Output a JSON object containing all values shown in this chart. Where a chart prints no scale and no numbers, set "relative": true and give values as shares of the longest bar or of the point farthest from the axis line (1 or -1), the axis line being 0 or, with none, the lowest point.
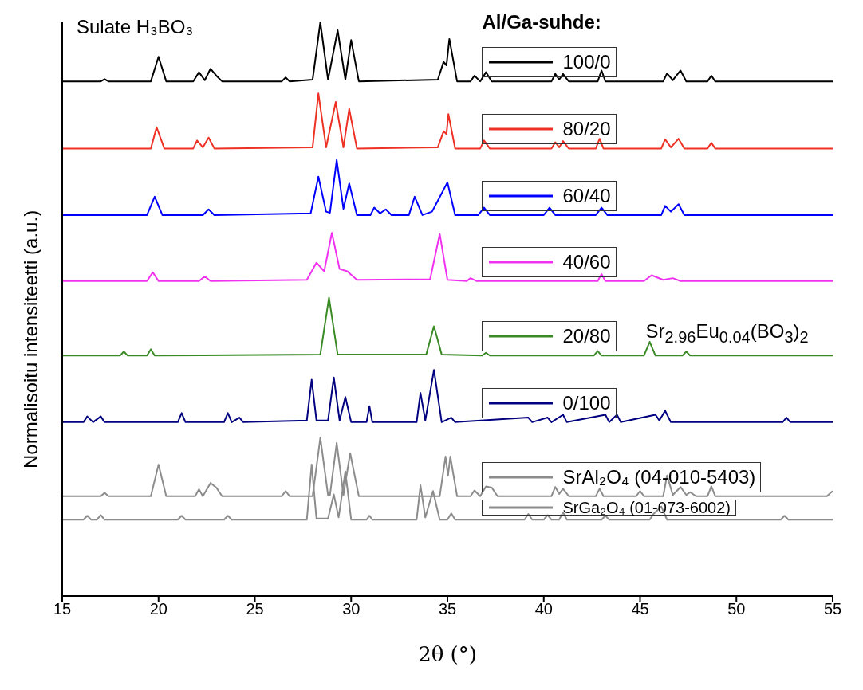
{
  "chart_data": {
    "type": "line",
    "relative": true,
    "xlabel": "2θ (°)",
    "ylabel": "Normalisoitu intensiteetti (a.u.)",
    "legend_title": "Al/Ga-suhde:",
    "legend": "top right",
    "tick_labels": "x",
    "xlim": [
      15,
      55
    ],
    "xticks": [
      15,
      20,
      25,
      30,
      35,
      40,
      45,
      50,
      55
    ],
    "annotations": [
      "Sulate H₃BO₃",
      "Sr$_{2.96}$Eu$_{0.04}$(BO$_{3}$)$_{2}$"
    ],
    "series": [
      {
        "name": "100/0",
        "color": "#000000",
        "x": [
          15,
          17.0,
          17.2,
          17.4,
          19.6,
          20.0,
          20.4,
          21.8,
          22.1,
          22.4,
          22.7,
          23.0,
          23.3,
          26.4,
          26.6,
          26.8,
          28.0,
          28.4,
          28.8,
          29.3,
          29.7,
          30.0,
          30.4,
          34.5,
          34.8,
          34.95,
          35.1,
          35.5,
          36.2,
          36.4,
          36.7,
          37.0,
          37.3,
          40.4,
          40.6,
          40.8,
          41.0,
          41.3,
          42.8,
          43.0,
          43.2,
          46.2,
          46.4,
          46.7,
          47.1,
          47.4,
          48.5,
          48.7,
          48.9,
          55
        ],
        "values": [
          0.897,
          0.897,
          0.901,
          0.897,
          0.897,
          0.94,
          0.897,
          0.897,
          0.913,
          0.899,
          0.919,
          0.907,
          0.897,
          0.897,
          0.904,
          0.897,
          0.9,
          1.0,
          0.9,
          0.986,
          0.9,
          0.969,
          0.897,
          0.9,
          0.931,
          0.925,
          0.971,
          0.897,
          0.897,
          0.907,
          0.897,
          0.913,
          0.897,
          0.897,
          0.91,
          0.9,
          0.91,
          0.897,
          0.897,
          0.916,
          0.897,
          0.897,
          0.911,
          0.899,
          0.916,
          0.897,
          0.897,
          0.907,
          0.897,
          0.897
        ]
      },
      {
        "name": "80/20",
        "color": "#ee3124",
        "x": [
          15,
          19.6,
          19.9,
          20.3,
          21.8,
          22.0,
          22.3,
          22.6,
          22.9,
          28.0,
          28.3,
          28.7,
          29.2,
          29.6,
          29.9,
          30.3,
          34.5,
          34.8,
          34.95,
          35.05,
          35.4,
          36.7,
          36.9,
          37.2,
          40.4,
          40.6,
          40.8,
          41.0,
          41.3,
          42.7,
          42.9,
          43.1,
          46.1,
          46.3,
          46.6,
          47.0,
          47.3,
          48.5,
          48.7,
          48.9,
          55
        ],
        "values": [
          0.78,
          0.78,
          0.817,
          0.78,
          0.78,
          0.794,
          0.782,
          0.799,
          0.78,
          0.782,
          0.876,
          0.782,
          0.861,
          0.782,
          0.849,
          0.78,
          0.782,
          0.81,
          0.805,
          0.84,
          0.78,
          0.78,
          0.794,
          0.78,
          0.78,
          0.791,
          0.782,
          0.793,
          0.78,
          0.78,
          0.797,
          0.78,
          0.78,
          0.796,
          0.782,
          0.797,
          0.78,
          0.78,
          0.79,
          0.78,
          0.78
        ]
      },
      {
        "name": "60/40",
        "color": "#0000ff",
        "x": [
          15,
          19.4,
          19.8,
          20.2,
          22.3,
          22.6,
          22.9,
          27.9,
          28.3,
          28.7,
          28.9,
          29.25,
          29.6,
          29.9,
          30.3,
          31.0,
          31.2,
          31.5,
          31.8,
          32.1,
          33.0,
          33.3,
          33.7,
          34.2,
          34.5,
          35.0,
          35.4,
          36.6,
          36.9,
          37.2,
          40.0,
          40.3,
          40.6,
          42.7,
          43.0,
          43.3,
          46.1,
          46.3,
          46.6,
          47.0,
          47.3,
          55
        ],
        "values": [
          0.664,
          0.664,
          0.696,
          0.664,
          0.664,
          0.674,
          0.664,
          0.667,
          0.731,
          0.67,
          0.668,
          0.76,
          0.675,
          0.719,
          0.664,
          0.664,
          0.677,
          0.667,
          0.674,
          0.664,
          0.664,
          0.696,
          0.664,
          0.67,
          0.689,
          0.721,
          0.664,
          0.664,
          0.677,
          0.664,
          0.664,
          0.677,
          0.664,
          0.664,
          0.677,
          0.664,
          0.664,
          0.68,
          0.67,
          0.683,
          0.664,
          0.664
        ]
      },
      {
        "name": "40/60",
        "color": "#f032f0",
        "x": [
          15,
          19.4,
          19.7,
          20.0,
          22.1,
          22.4,
          22.7,
          27.7,
          28.2,
          28.6,
          29.0,
          29.4,
          29.8,
          30.3,
          34.1,
          34.6,
          35.0,
          36.0,
          36.2,
          36.5,
          42.8,
          43.0,
          43.2,
          45.2,
          45.6,
          46.2,
          46.7,
          47.1,
          55
        ],
        "values": [
          0.549,
          0.549,
          0.564,
          0.549,
          0.549,
          0.557,
          0.549,
          0.551,
          0.581,
          0.566,
          0.633,
          0.57,
          0.566,
          0.551,
          0.552,
          0.631,
          0.551,
          0.549,
          0.554,
          0.549,
          0.549,
          0.561,
          0.549,
          0.549,
          0.559,
          0.551,
          0.554,
          0.549,
          0.549
        ]
      },
      {
        "name": "20/80",
        "color": "#3a8a25",
        "x": [
          15,
          18.0,
          18.2,
          18.4,
          19.4,
          19.6,
          19.8,
          28.4,
          28.85,
          29.3,
          33.9,
          34.3,
          34.7,
          36.8,
          37.0,
          37.2,
          42.6,
          42.8,
          43.0,
          45.2,
          45.5,
          45.8,
          47.2,
          47.4,
          47.6,
          55
        ],
        "values": [
          0.419,
          0.419,
          0.426,
          0.419,
          0.419,
          0.43,
          0.419,
          0.421,
          0.52,
          0.421,
          0.421,
          0.47,
          0.421,
          0.419,
          0.424,
          0.419,
          0.419,
          0.427,
          0.419,
          0.419,
          0.443,
          0.419,
          0.419,
          0.426,
          0.419,
          0.419
        ]
      },
      {
        "name": "0/100",
        "color": "#000080",
        "x": [
          15,
          16.1,
          16.3,
          16.6,
          17.0,
          17.2,
          21.0,
          21.2,
          21.4,
          23.4,
          23.6,
          23.8,
          24.2,
          24.4,
          27.7,
          27.95,
          28.2,
          28.8,
          29.1,
          29.4,
          29.7,
          30.0,
          30.8,
          30.95,
          31.1,
          33.4,
          33.6,
          33.85,
          34.3,
          34.7,
          35.2,
          35.4,
          39.2,
          39.4,
          40.2,
          40.4,
          41.0,
          41.2,
          43.2,
          43.4,
          43.8,
          44.0,
          45.8,
          46.0,
          46.3,
          46.6,
          52.4,
          52.6,
          52.8,
          55
        ],
        "values": [
          0.303,
          0.303,
          0.313,
          0.303,
          0.313,
          0.303,
          0.303,
          0.319,
          0.303,
          0.303,
          0.319,
          0.303,
          0.311,
          0.303,
          0.306,
          0.377,
          0.306,
          0.306,
          0.381,
          0.306,
          0.347,
          0.303,
          0.303,
          0.331,
          0.303,
          0.303,
          0.354,
          0.306,
          0.394,
          0.303,
          0.311,
          0.303,
          0.311,
          0.303,
          0.311,
          0.303,
          0.316,
          0.303,
          0.316,
          0.303,
          0.316,
          0.303,
          0.316,
          0.306,
          0.323,
          0.303,
          0.303,
          0.311,
          0.303,
          0.303
        ]
      },
      {
        "name": "SrAl₂O₄ (04-010-5403)",
        "color": "#8c8c8c",
        "x": [
          15,
          17.0,
          17.2,
          17.4,
          19.6,
          20.0,
          20.4,
          21.9,
          22.1,
          22.3,
          22.7,
          23.0,
          23.3,
          26.4,
          26.6,
          26.8,
          28.0,
          28.4,
          28.8,
          28.9,
          29.25,
          29.6,
          29.95,
          30.4,
          34.6,
          34.9,
          35.03,
          35.15,
          35.5,
          36.2,
          36.4,
          36.7,
          37.0,
          37.3,
          37.6,
          40.4,
          40.6,
          40.8,
          41.0,
          41.3,
          42.7,
          42.9,
          43.1,
          44.8,
          45.0,
          45.2,
          46.2,
          46.4,
          46.7,
          47.1,
          47.4,
          47.6,
          47.9,
          48.5,
          48.7,
          48.9,
          54.7,
          55
        ],
        "values": [
          0.174,
          0.174,
          0.18,
          0.174,
          0.174,
          0.229,
          0.174,
          0.174,
          0.186,
          0.174,
          0.197,
          0.189,
          0.174,
          0.174,
          0.183,
          0.174,
          0.174,
          0.276,
          0.176,
          0.176,
          0.267,
          0.176,
          0.249,
          0.174,
          0.174,
          0.243,
          0.21,
          0.243,
          0.174,
          0.174,
          0.184,
          0.174,
          0.191,
          0.189,
          0.174,
          0.174,
          0.19,
          0.178,
          0.187,
          0.174,
          0.174,
          0.187,
          0.174,
          0.174,
          0.183,
          0.174,
          0.174,
          0.21,
          0.176,
          0.19,
          0.176,
          0.181,
          0.174,
          0.174,
          0.191,
          0.174,
          0.174,
          0.183
        ]
      },
      {
        "name": "SrGa₂O₄ (01-073-6002)",
        "color": "#8c8c8c",
        "x": [
          15,
          16.1,
          16.3,
          16.5,
          16.8,
          17.0,
          17.2,
          21.0,
          21.2,
          21.4,
          23.4,
          23.6,
          23.8,
          27.7,
          27.95,
          28.2,
          28.8,
          29.1,
          29.35,
          29.7,
          30.0,
          30.8,
          30.95,
          31.1,
          33.4,
          33.6,
          33.85,
          34.25,
          34.6,
          35.0,
          35.2,
          35.4,
          39.0,
          39.2,
          39.4,
          40.0,
          40.2,
          40.4,
          40.8,
          41.0,
          41.2,
          43.0,
          43.2,
          43.4,
          45.5,
          45.7,
          46.1,
          46.4,
          52.3,
          52.5,
          52.7,
          55
        ],
        "values": [
          0.133,
          0.133,
          0.14,
          0.133,
          0.133,
          0.141,
          0.133,
          0.133,
          0.14,
          0.133,
          0.133,
          0.14,
          0.133,
          0.133,
          0.229,
          0.135,
          0.135,
          0.177,
          0.137,
          0.217,
          0.133,
          0.133,
          0.14,
          0.133,
          0.133,
          0.193,
          0.137,
          0.183,
          0.133,
          0.133,
          0.144,
          0.133,
          0.133,
          0.143,
          0.133,
          0.133,
          0.141,
          0.133,
          0.133,
          0.146,
          0.133,
          0.133,
          0.14,
          0.133,
          0.133,
          0.143,
          0.156,
          0.133,
          0.133,
          0.14,
          0.133,
          0.133
        ]
      }
    ]
  }
}
